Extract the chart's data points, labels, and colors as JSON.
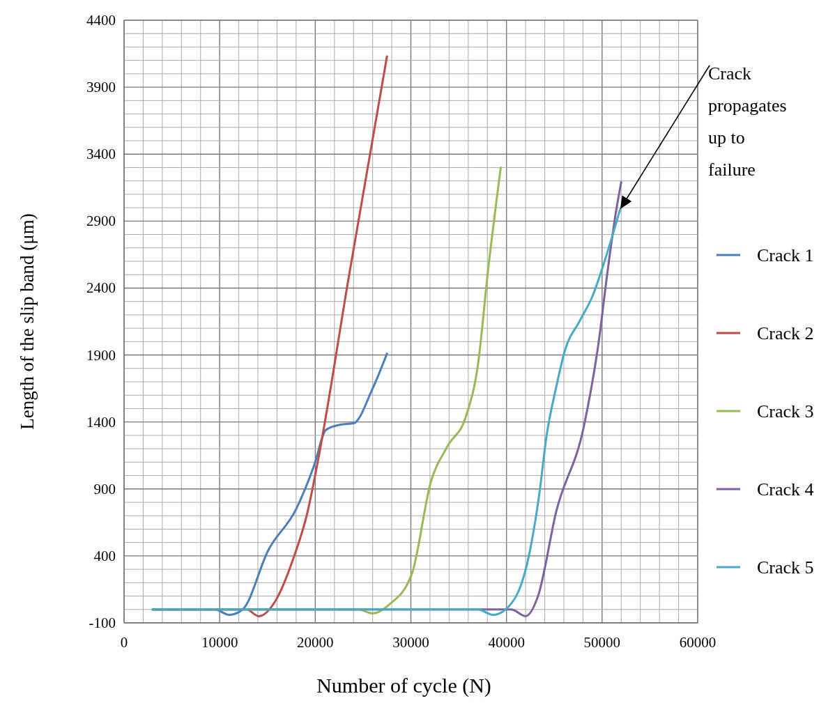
{
  "chart_data": {
    "type": "line",
    "xlabel": "Number of cycle (N)",
    "ylabel": "Length of the slip band (μm)",
    "xlim": [
      0,
      60000
    ],
    "ylim": [
      -100,
      4400
    ],
    "xticks": [
      0,
      {
        "value": 2000,
        "label": null
      },
      {
        "value": 4000,
        "label": null
      },
      {
        "value": 6000,
        "label": null
      },
      {
        "value": 8000,
        "label": null
      },
      10000,
      {
        "value": 12000,
        "label": null
      },
      {
        "value": 14000,
        "label": null
      },
      {
        "value": 16000,
        "label": null
      },
      {
        "value": 18000,
        "label": null
      },
      20000,
      {
        "value": 22000,
        "label": null
      },
      {
        "value": 24000,
        "label": null
      },
      {
        "value": 26000,
        "label": null
      },
      {
        "value": 28000,
        "label": null
      },
      30000,
      {
        "value": 32000,
        "label": null
      },
      {
        "value": 34000,
        "label": null
      },
      {
        "value": 36000,
        "label": null
      },
      {
        "value": 38000,
        "label": null
      },
      40000,
      {
        "value": 42000,
        "label": null
      },
      {
        "value": 44000,
        "label": null
      },
      {
        "value": 46000,
        "label": null
      },
      {
        "value": 48000,
        "label": null
      },
      50000,
      {
        "value": 52000,
        "label": null
      },
      {
        "value": 54000,
        "label": null
      },
      {
        "value": 56000,
        "label": null
      },
      {
        "value": 58000,
        "label": null
      },
      60000
    ],
    "yticks": [
      -100,
      {
        "value": 0,
        "label": null
      },
      {
        "value": 100,
        "label": null
      },
      {
        "value": 200,
        "label": null
      },
      {
        "value": 300,
        "label": null
      },
      400,
      {
        "value": 500,
        "label": null
      },
      {
        "value": 600,
        "label": null
      },
      {
        "value": 700,
        "label": null
      },
      {
        "value": 800,
        "label": null
      },
      900,
      {
        "value": 1000,
        "label": null
      },
      {
        "value": 1100,
        "label": null
      },
      {
        "value": 1200,
        "label": null
      },
      {
        "value": 1300,
        "label": null
      },
      1400,
      {
        "value": 1500,
        "label": null
      },
      {
        "value": 1600,
        "label": null
      },
      {
        "value": 1700,
        "label": null
      },
      {
        "value": 1800,
        "label": null
      },
      1900,
      {
        "value": 2000,
        "label": null
      },
      {
        "value": 2100,
        "label": null
      },
      {
        "value": 2200,
        "label": null
      },
      {
        "value": 2300,
        "label": null
      },
      2400,
      {
        "value": 2500,
        "label": null
      },
      {
        "value": 2600,
        "label": null
      },
      {
        "value": 2700,
        "label": null
      },
      {
        "value": 2800,
        "label": null
      },
      2900,
      {
        "value": 3000,
        "label": null
      },
      {
        "value": 3100,
        "label": null
      },
      {
        "value": 3200,
        "label": null
      },
      {
        "value": 3300,
        "label": null
      },
      3400,
      {
        "value": 3500,
        "label": null
      },
      {
        "value": 3600,
        "label": null
      },
      {
        "value": 3700,
        "label": null
      },
      {
        "value": 3800,
        "label": null
      },
      3900,
      {
        "value": 4000,
        "label": null
      },
      {
        "value": 4100,
        "label": null
      },
      {
        "value": 4200,
        "label": null
      },
      {
        "value": 4300,
        "label": null
      },
      4400
    ],
    "grid": true,
    "legend": "right",
    "marker": "none",
    "line_style": "solid",
    "series": [
      {
        "name": "Crack 1",
        "color": "#4a7ebb",
        "x": [
          3000,
          9500,
          11000,
          12400,
          15100,
          18000,
          19900,
          21100,
          22600,
          24000,
          26000,
          27500
        ],
        "values": [
          0,
          0,
          -40,
          0,
          445,
          750,
          1080,
          1340,
          1380,
          1390,
          1650,
          1910
        ]
      },
      {
        "name": "Crack 2",
        "color": "#be4b48",
        "x": [
          3000,
          12800,
          14100,
          15800,
          17700,
          19200,
          20200,
          23500,
          27500
        ],
        "values": [
          0,
          0,
          -50,
          60,
          380,
          730,
          1080,
          2480,
          4130
        ]
      },
      {
        "name": "Crack 3",
        "color": "#98b954",
        "x": [
          3000,
          24500,
          26000,
          27700,
          30100,
          32100,
          33800,
          35800,
          37000,
          38100,
          39400
        ],
        "values": [
          0,
          0,
          -30,
          35,
          265,
          955,
          1215,
          1450,
          1820,
          2550,
          3300
        ]
      },
      {
        "name": "Crack 4",
        "color": "#7d60a0",
        "x": [
          3000,
          40500,
          42000,
          43300,
          45200,
          48100,
          49600,
          50600,
          51500,
          52000
        ],
        "values": [
          0,
          0,
          -50,
          100,
          730,
          1370,
          1975,
          2540,
          2990,
          3190
        ]
      },
      {
        "name": "Crack 5",
        "color": "#46aac5",
        "x": [
          3000,
          37000,
          38600,
          39900,
          42100,
          43400,
          44200,
          45200,
          46100,
          47700,
          49000,
          50300,
          51900
        ],
        "values": [
          0,
          0,
          -40,
          0,
          325,
          845,
          1300,
          1660,
          1930,
          2160,
          2340,
          2610,
          2990
        ]
      }
    ],
    "annotations": [
      "Crack propagates up to failure"
    ]
  }
}
